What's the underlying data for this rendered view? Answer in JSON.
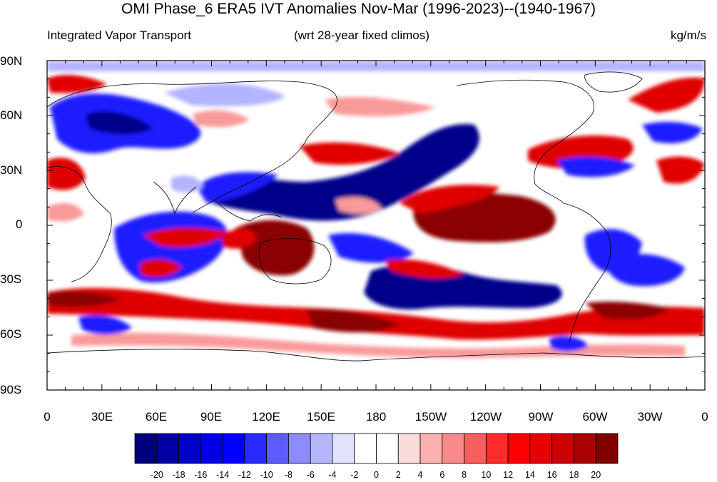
{
  "title": "OMI Phase_6 ERA5 IVT Anomalies Nov-Mar (1996-2023)--(1940-1967)",
  "subtitle_left": "Integrated Vapor Transport",
  "subtitle_center": "(wrt 28-year fixed climos)",
  "subtitle_right": "kg/m/s",
  "lat_labels": [
    "90N",
    "60N",
    "30N",
    "0",
    "30S",
    "60S",
    "90S"
  ],
  "lon_labels": [
    "0",
    "30E",
    "60E",
    "90E",
    "120E",
    "150E",
    "180",
    "150W",
    "120W",
    "90W",
    "60W",
    "30W",
    "0"
  ],
  "colorbar_labels": [
    "-20",
    "-18",
    "-16",
    "-14",
    "-12",
    "-10",
    "-8",
    "-6",
    "-4",
    "-2",
    "0",
    "2",
    "4",
    "6",
    "8",
    "10",
    "12",
    "14",
    "16",
    "18",
    "20"
  ],
  "colorbar_colors": [
    "#00007f",
    "#0000a6",
    "#0000c8",
    "#0000e6",
    "#0000ff",
    "#2a2aff",
    "#5c5cff",
    "#8c8cff",
    "#b6b6ff",
    "#e2e2fa",
    "#ffffff",
    "#ffffff",
    "#fbdada",
    "#fcb0b0",
    "#f98a8a",
    "#f75f5f",
    "#ff2a2a",
    "#ff0000",
    "#e60000",
    "#cc0000",
    "#ab0000",
    "#800000"
  ],
  "colors": {
    "strong_positive": "#8b0000",
    "positive": "#e00000",
    "weak_positive": "#f99a9a",
    "strong_negative": "#00008b",
    "negative": "#1515ff",
    "weak_negative": "#b3b3ff",
    "neutral": "#ffffff",
    "coastline": "#000000"
  }
}
